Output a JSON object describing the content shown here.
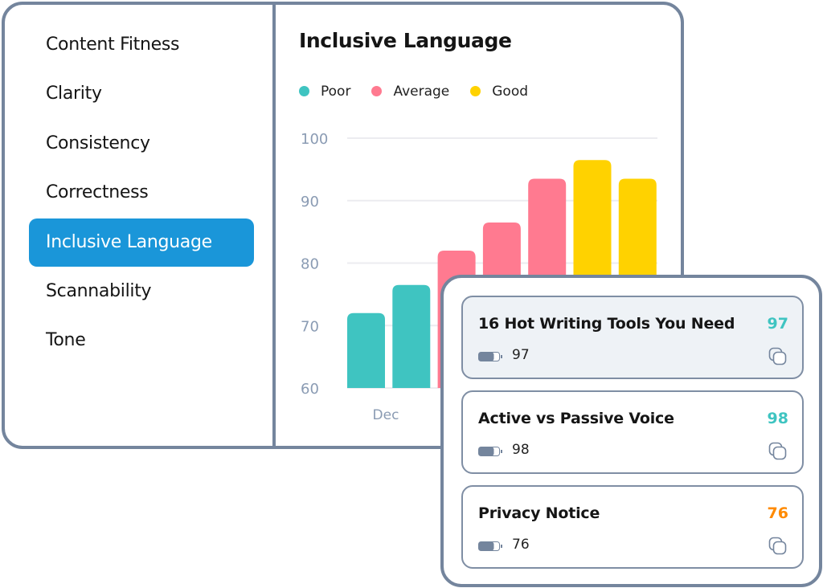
{
  "sidebar": {
    "items": [
      {
        "label": "Content Fitness",
        "active": false
      },
      {
        "label": "Clarity",
        "active": false
      },
      {
        "label": "Consistency",
        "active": false
      },
      {
        "label": "Correctness",
        "active": false
      },
      {
        "label": "Inclusive Language",
        "active": true
      },
      {
        "label": "Scannability",
        "active": false
      },
      {
        "label": "Tone",
        "active": false
      }
    ]
  },
  "colors": {
    "poor": "#3fc4c1",
    "average": "#ff7a90",
    "good": "#ffd200",
    "accent": "#1a96d9",
    "score_high": "#3fc4c1",
    "score_mid": "#ff8a00"
  },
  "chart_data": {
    "type": "bar",
    "title": "Inclusive Language",
    "legend": [
      "Poor",
      "Average",
      "Good"
    ],
    "legend_position": "top-left",
    "values": [
      72,
      76.5,
      82,
      86.5,
      93.5,
      96.5,
      93.5
    ],
    "series_of_bar": [
      "Poor",
      "Poor",
      "Average",
      "Average",
      "Average",
      "Good",
      "Good"
    ],
    "x_labels": [
      "Dec"
    ],
    "ylim": [
      60,
      100
    ],
    "yticks": [
      "100",
      "90",
      "80",
      "70",
      "60"
    ],
    "grid": true
  },
  "cards": [
    {
      "title": "16 Hot Writing Tools You Need",
      "score": "97",
      "battery_value": "97",
      "score_color": "#3fc4c1",
      "selected": true
    },
    {
      "title": "Active vs Passive Voice",
      "score": "98",
      "battery_value": "98",
      "score_color": "#3fc4c1",
      "selected": false
    },
    {
      "title": "Privacy Notice",
      "score": "76",
      "battery_value": "76",
      "score_color": "#ff8a00",
      "selected": false
    }
  ]
}
